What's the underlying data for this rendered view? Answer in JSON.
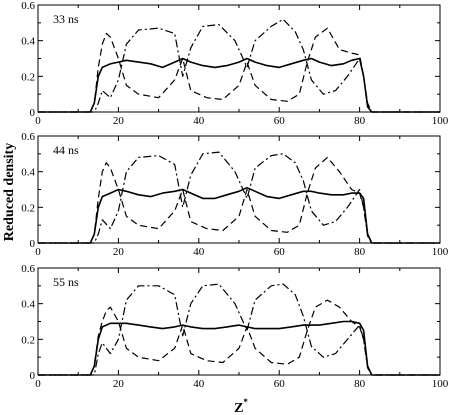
{
  "figure": {
    "ylabel": "Reduced density",
    "xlabel": "Z",
    "xlabel_superscript": "*"
  },
  "chart_data": [
    {
      "type": "line",
      "panel_label": "33 ns",
      "xlim": [
        0,
        100
      ],
      "ylim": [
        0,
        0.6
      ],
      "x_ticks": [
        0,
        20,
        40,
        60,
        80,
        100
      ],
      "y_ticks": [
        0,
        0.2,
        0.4,
        0.6
      ],
      "x_tick_labels": [
        "0",
        "20",
        "40",
        "60",
        "80",
        "100"
      ],
      "y_tick_labels": [
        "0",
        "0.2",
        "0.4",
        "0.6"
      ],
      "series": [
        {
          "style": "solid",
          "x": [
            0,
            13,
            14,
            15,
            16,
            18,
            20,
            22,
            25,
            28,
            31,
            34,
            36,
            38,
            41,
            44,
            47,
            50,
            52,
            54,
            57,
            60,
            63,
            66,
            68,
            70,
            73,
            76,
            78,
            80,
            81,
            82,
            83,
            100
          ],
          "y": [
            0,
            0,
            0.05,
            0.2,
            0.25,
            0.27,
            0.28,
            0.29,
            0.28,
            0.27,
            0.25,
            0.28,
            0.3,
            0.28,
            0.26,
            0.25,
            0.26,
            0.28,
            0.3,
            0.28,
            0.26,
            0.25,
            0.27,
            0.29,
            0.3,
            0.28,
            0.26,
            0.27,
            0.29,
            0.3,
            0.2,
            0.03,
            0,
            0
          ]
        },
        {
          "style": "dashed",
          "x": [
            0,
            13,
            14,
            15,
            16,
            17,
            18,
            20,
            22,
            25,
            30,
            34,
            36,
            38,
            42,
            46,
            50,
            52,
            54,
            58,
            62,
            65,
            67,
            69,
            72,
            75,
            78,
            80,
            81,
            82,
            83,
            100
          ],
          "y": [
            0,
            0,
            0.05,
            0.25,
            0.38,
            0.44,
            0.42,
            0.3,
            0.15,
            0.1,
            0.08,
            0.18,
            0.3,
            0.12,
            0.08,
            0.07,
            0.15,
            0.28,
            0.15,
            0.07,
            0.06,
            0.1,
            0.28,
            0.42,
            0.47,
            0.35,
            0.33,
            0.32,
            0.2,
            0.05,
            0,
            0
          ]
        },
        {
          "style": "dashdot",
          "x": [
            0,
            14,
            15,
            16,
            18,
            20,
            22,
            25,
            30,
            34,
            36,
            38,
            41,
            45,
            49,
            52,
            54,
            58,
            61,
            64,
            66,
            68,
            71,
            74,
            77,
            80,
            81,
            82,
            83,
            100
          ],
          "y": [
            0,
            0,
            0.05,
            0.12,
            0.08,
            0.18,
            0.38,
            0.46,
            0.47,
            0.44,
            0.2,
            0.36,
            0.48,
            0.49,
            0.4,
            0.25,
            0.4,
            0.48,
            0.52,
            0.45,
            0.35,
            0.18,
            0.1,
            0.12,
            0.2,
            0.3,
            0.2,
            0.04,
            0,
            0
          ]
        }
      ]
    },
    {
      "type": "line",
      "panel_label": "44 ns",
      "xlim": [
        0,
        100
      ],
      "ylim": [
        0,
        0.6
      ],
      "x_ticks": [
        0,
        20,
        40,
        60,
        80,
        100
      ],
      "y_ticks": [
        0,
        0.2,
        0.4,
        0.6
      ],
      "x_tick_labels": [
        "0",
        "20",
        "40",
        "60",
        "80",
        "100"
      ],
      "y_tick_labels": [
        "0",
        "0.2",
        "0.4",
        "0.6"
      ],
      "series": [
        {
          "style": "solid",
          "x": [
            0,
            13,
            14,
            15,
            16,
            18,
            20,
            22,
            25,
            28,
            31,
            34,
            36,
            38,
            41,
            44,
            47,
            50,
            52,
            54,
            57,
            60,
            63,
            66,
            68,
            70,
            73,
            76,
            78,
            80,
            81,
            82,
            83,
            100
          ],
          "y": [
            0,
            0,
            0.05,
            0.2,
            0.26,
            0.28,
            0.3,
            0.29,
            0.27,
            0.26,
            0.28,
            0.29,
            0.3,
            0.28,
            0.25,
            0.25,
            0.27,
            0.29,
            0.31,
            0.29,
            0.26,
            0.25,
            0.27,
            0.29,
            0.29,
            0.28,
            0.27,
            0.27,
            0.28,
            0.28,
            0.25,
            0.05,
            0,
            0
          ]
        },
        {
          "style": "dashed",
          "x": [
            0,
            13,
            14,
            15,
            16,
            17,
            18,
            20,
            22,
            25,
            30,
            34,
            36,
            38,
            42,
            46,
            50,
            52,
            54,
            58,
            62,
            65,
            67,
            69,
            72,
            75,
            78,
            80,
            81,
            82,
            83,
            100
          ],
          "y": [
            0,
            0,
            0.05,
            0.25,
            0.4,
            0.45,
            0.42,
            0.3,
            0.15,
            0.1,
            0.08,
            0.18,
            0.3,
            0.12,
            0.08,
            0.07,
            0.15,
            0.3,
            0.15,
            0.07,
            0.06,
            0.1,
            0.28,
            0.42,
            0.48,
            0.4,
            0.3,
            0.28,
            0.2,
            0.05,
            0,
            0
          ]
        },
        {
          "style": "dashdot",
          "x": [
            0,
            14,
            15,
            16,
            18,
            20,
            22,
            25,
            30,
            34,
            36,
            38,
            41,
            45,
            49,
            52,
            54,
            58,
            61,
            64,
            66,
            68,
            71,
            74,
            77,
            80,
            81,
            82,
            83,
            100
          ],
          "y": [
            0,
            0,
            0.05,
            0.13,
            0.08,
            0.18,
            0.4,
            0.48,
            0.49,
            0.44,
            0.2,
            0.38,
            0.5,
            0.51,
            0.4,
            0.25,
            0.42,
            0.49,
            0.5,
            0.45,
            0.35,
            0.18,
            0.1,
            0.12,
            0.2,
            0.3,
            0.2,
            0.04,
            0,
            0
          ]
        }
      ]
    },
    {
      "type": "line",
      "panel_label": "55 ns",
      "xlim": [
        0,
        100
      ],
      "ylim": [
        0,
        0.6
      ],
      "x_ticks": [
        0,
        20,
        40,
        60,
        80,
        100
      ],
      "y_ticks": [
        0,
        0.2,
        0.4,
        0.6
      ],
      "x_tick_labels": [
        "0",
        "20",
        "40",
        "60",
        "80",
        "100"
      ],
      "y_tick_labels": [
        "0",
        "0.2",
        "0.4",
        "0.6"
      ],
      "series": [
        {
          "style": "solid",
          "x": [
            0,
            13,
            14,
            15,
            16,
            18,
            20,
            22,
            25,
            28,
            31,
            34,
            36,
            38,
            41,
            44,
            47,
            50,
            52,
            54,
            57,
            60,
            63,
            66,
            68,
            70,
            73,
            76,
            78,
            80,
            81,
            82,
            83,
            100
          ],
          "y": [
            0,
            0,
            0.05,
            0.2,
            0.27,
            0.29,
            0.29,
            0.29,
            0.28,
            0.27,
            0.26,
            0.27,
            0.28,
            0.27,
            0.26,
            0.26,
            0.27,
            0.28,
            0.27,
            0.26,
            0.26,
            0.26,
            0.27,
            0.28,
            0.28,
            0.28,
            0.29,
            0.3,
            0.3,
            0.29,
            0.25,
            0.05,
            0,
            0
          ]
        },
        {
          "style": "dashed",
          "x": [
            0,
            13,
            14,
            15,
            16,
            17,
            18,
            20,
            22,
            25,
            30,
            34,
            36,
            38,
            42,
            46,
            50,
            52,
            54,
            58,
            62,
            65,
            67,
            69,
            72,
            75,
            78,
            80,
            81,
            82,
            83,
            100
          ],
          "y": [
            0,
            0,
            0.05,
            0.22,
            0.3,
            0.36,
            0.38,
            0.3,
            0.15,
            0.1,
            0.08,
            0.15,
            0.28,
            0.12,
            0.08,
            0.07,
            0.15,
            0.27,
            0.15,
            0.07,
            0.06,
            0.1,
            0.25,
            0.38,
            0.42,
            0.38,
            0.3,
            0.27,
            0.2,
            0.05,
            0,
            0
          ]
        },
        {
          "style": "dashdot",
          "x": [
            0,
            14,
            15,
            16,
            18,
            20,
            22,
            25,
            30,
            34,
            36,
            38,
            41,
            45,
            49,
            52,
            54,
            58,
            61,
            64,
            66,
            68,
            71,
            74,
            77,
            80,
            81,
            82,
            83,
            100
          ],
          "y": [
            0,
            0,
            0.12,
            0.18,
            0.12,
            0.2,
            0.42,
            0.5,
            0.5,
            0.45,
            0.22,
            0.4,
            0.5,
            0.51,
            0.4,
            0.25,
            0.42,
            0.5,
            0.51,
            0.45,
            0.33,
            0.16,
            0.1,
            0.12,
            0.2,
            0.28,
            0.2,
            0.04,
            0,
            0
          ]
        }
      ]
    }
  ]
}
